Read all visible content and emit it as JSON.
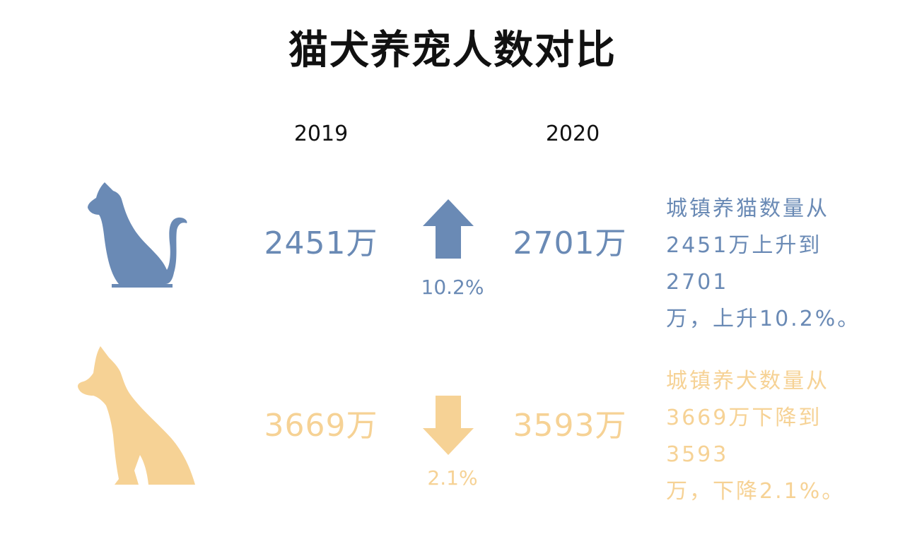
{
  "title": "猫犬养宠人数对比",
  "years": {
    "left": "2019",
    "right": "2020"
  },
  "colors": {
    "cat": "#6a8ab5",
    "dog": "#f6d295",
    "text": "#111111"
  },
  "rows": [
    {
      "animal": "cat",
      "icon": "cat-icon",
      "value_2019": "2451万",
      "value_2020": "2701万",
      "direction": "up",
      "change_label": "10.2%",
      "description": [
        "城镇养猫数量从",
        "2451万上升到2701",
        "万，上升10.2%。"
      ]
    },
    {
      "animal": "dog",
      "icon": "dog-icon",
      "value_2019": "3669万",
      "value_2020": "3593万",
      "direction": "down",
      "change_label": "2.1%",
      "description": [
        "城镇养犬数量从",
        "3669万下降到3593",
        "万，下降2.1%。"
      ]
    }
  ],
  "chart_data": {
    "type": "table",
    "title": "猫犬养宠人数对比",
    "columns": [
      "2019",
      "2020"
    ],
    "series": [
      {
        "values": [
          2451,
          2701
        ],
        "change": "10.2%",
        "direction": "up"
      },
      {
        "values": [
          3669,
          3593
        ],
        "change": "2.1%",
        "direction": "down"
      }
    ]
  }
}
